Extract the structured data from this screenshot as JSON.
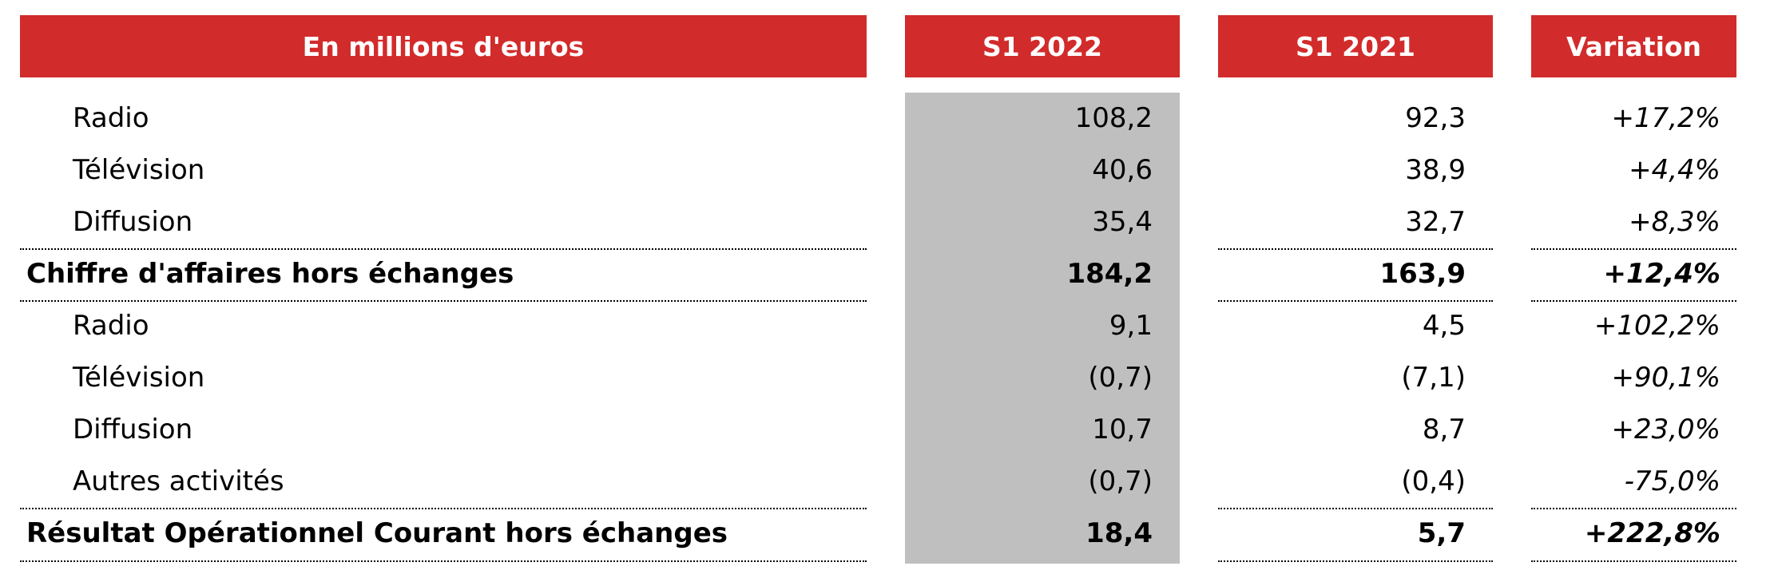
{
  "header": {
    "label_col": "En millions d'euros",
    "col1": "S1 2022",
    "col2": "S1 2021",
    "col3": "Variation"
  },
  "rows": [
    {
      "label": "Radio",
      "s1_2022": "108,2",
      "s1_2021": "92,3",
      "variation": "+17,2%"
    },
    {
      "label": "Télévision",
      "s1_2022": "40,6",
      "s1_2021": "38,9",
      "variation": "+4,4%"
    },
    {
      "label": "Diffusion",
      "s1_2022": "35,4",
      "s1_2021": "32,7",
      "variation": "+8,3%"
    },
    {
      "label": "Chiffre d'affaires hors échanges",
      "s1_2022": "184,2",
      "s1_2021": "163,9",
      "variation": "+12,4%"
    },
    {
      "label": "Radio",
      "s1_2022": "9,1",
      "s1_2021": "4,5",
      "variation": "+102,2%"
    },
    {
      "label": "Télévision",
      "s1_2022": "(0,7)",
      "s1_2021": "(7,1)",
      "variation": "+90,1%"
    },
    {
      "label": "Diffusion",
      "s1_2022": "10,7",
      "s1_2021": "8,7",
      "variation": "+23,0%"
    },
    {
      "label": "Autres activités",
      "s1_2022": "(0,7)",
      "s1_2021": "(0,4)",
      "variation": "-75,0%"
    },
    {
      "label": "Résultat Opérationnel Courant hors échanges",
      "s1_2022": "18,4",
      "s1_2021": "5,7",
      "variation": "+222,8%"
    }
  ],
  "colors": {
    "header_bg": "#d22b2b",
    "header_text": "#ffffff",
    "highlight_col_bg": "#bfbfbf"
  }
}
